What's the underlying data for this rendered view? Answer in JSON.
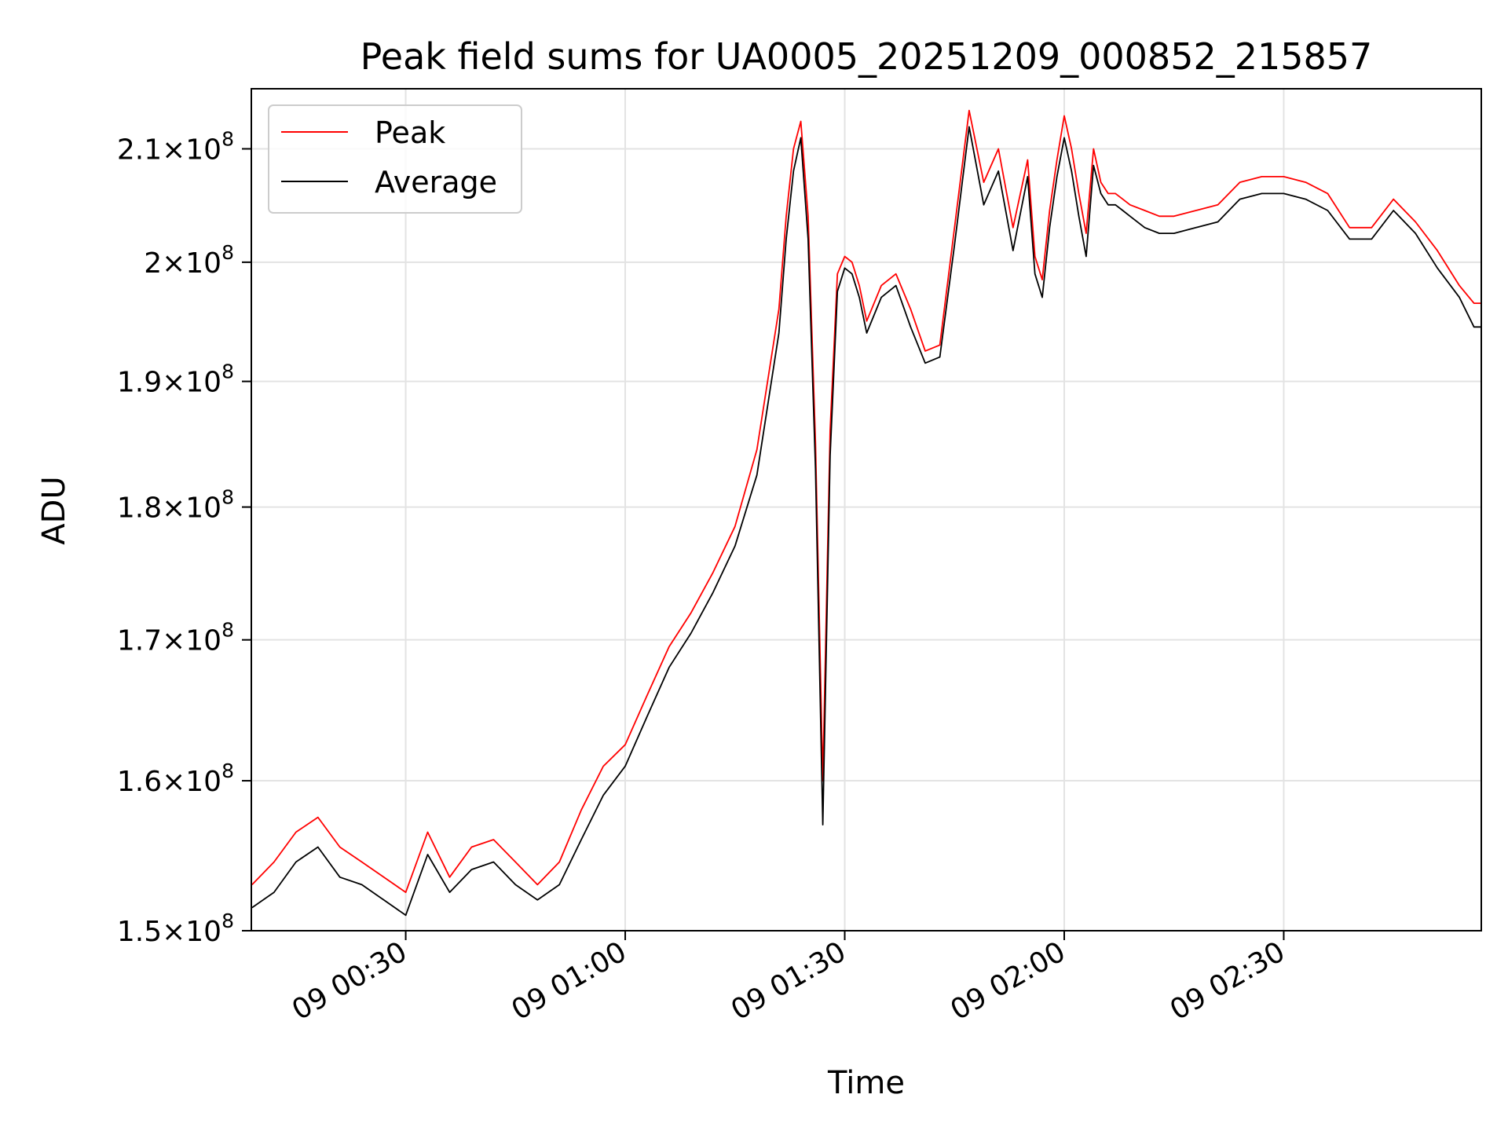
{
  "chart_data": {
    "type": "line",
    "title": "Peak field sums for UA0005_20251209_000852_215857",
    "xlabel": "Time",
    "ylabel": "ADU",
    "grid": true,
    "legend_position": "upper-left",
    "x_unit": "minutes after 09 00:00",
    "x_range": [
      8.9,
      177.0
    ],
    "y_scale": "log",
    "y_range": [
      150000000,
      215500000
    ],
    "x_ticks": [
      {
        "value": 30,
        "label": "09 00:30"
      },
      {
        "value": 60,
        "label": "09 01:00"
      },
      {
        "value": 90,
        "label": "09 01:30"
      },
      {
        "value": 120,
        "label": "09 02:00"
      },
      {
        "value": 150,
        "label": "09 02:30"
      }
    ],
    "y_ticks": [
      {
        "value": 150000000,
        "mantissa": "1.5",
        "exponent": "8"
      },
      {
        "value": 160000000,
        "mantissa": "1.6",
        "exponent": "8"
      },
      {
        "value": 170000000,
        "mantissa": "1.7",
        "exponent": "8"
      },
      {
        "value": 180000000,
        "mantissa": "1.8",
        "exponent": "8"
      },
      {
        "value": 190000000,
        "mantissa": "1.9",
        "exponent": "8"
      },
      {
        "value": 200000000,
        "mantissa": "2",
        "exponent": "8"
      },
      {
        "value": 210000000,
        "mantissa": "2.1",
        "exponent": "8"
      }
    ],
    "x": [
      9,
      12,
      15,
      18,
      21,
      24,
      27,
      30,
      33,
      36,
      39,
      42,
      45,
      48,
      51,
      54,
      57,
      60,
      63,
      66,
      69,
      72,
      75,
      78,
      81,
      82,
      83,
      84,
      85,
      86,
      87,
      88,
      89,
      90,
      91,
      92,
      93,
      95,
      97,
      99,
      101,
      103,
      105,
      107,
      109,
      111,
      113,
      115,
      116,
      117,
      118,
      119,
      120,
      121,
      122,
      123,
      124,
      125,
      126,
      127,
      128,
      129,
      131,
      133,
      135,
      138,
      141,
      144,
      147,
      150,
      153,
      156,
      159,
      162,
      165,
      168,
      171,
      174,
      176,
      177
    ],
    "series": [
      {
        "name": "Peak",
        "color": "#ff0000",
        "values": [
          153000000,
          154500000,
          156500000,
          157500000,
          155500000,
          154500000,
          153500000,
          152500000,
          156500000,
          153500000,
          155500000,
          156000000,
          154500000,
          153000000,
          154500000,
          158000000,
          161000000,
          162500000,
          166000000,
          169500000,
          172000000,
          175000000,
          178500000,
          184500000,
          196000000,
          204000000,
          210000000,
          212500000,
          204000000,
          185000000,
          160000000,
          186000000,
          199000000,
          200500000,
          200000000,
          198000000,
          195000000,
          198000000,
          199000000,
          196000000,
          192500000,
          193000000,
          203000000,
          213500000,
          207000000,
          210000000,
          203000000,
          209000000,
          200500000,
          198500000,
          204500000,
          209000000,
          213000000,
          210000000,
          206000000,
          202500000,
          210000000,
          207000000,
          206000000,
          206000000,
          205500000,
          205000000,
          204500000,
          204000000,
          204000000,
          204500000,
          205000000,
          207000000,
          207500000,
          207500000,
          207000000,
          206000000,
          203000000,
          203000000,
          205500000,
          203500000,
          201000000,
          198000000,
          196500000,
          196500000
        ]
      },
      {
        "name": "Average",
        "color": "#000000",
        "values": [
          151500000,
          152500000,
          154500000,
          155500000,
          153500000,
          153000000,
          152000000,
          151000000,
          155000000,
          152500000,
          154000000,
          154500000,
          153000000,
          152000000,
          153000000,
          156000000,
          159000000,
          161000000,
          164500000,
          168000000,
          170500000,
          173500000,
          177000000,
          182500000,
          194000000,
          202000000,
          208000000,
          211000000,
          202000000,
          183000000,
          157000000,
          184000000,
          197500000,
          199500000,
          199000000,
          197000000,
          194000000,
          197000000,
          198000000,
          194500000,
          191500000,
          192000000,
          201500000,
          212000000,
          205000000,
          208000000,
          201000000,
          207500000,
          199000000,
          197000000,
          203000000,
          207500000,
          211000000,
          208000000,
          204000000,
          200500000,
          208500000,
          206000000,
          205000000,
          205000000,
          204500000,
          204000000,
          203000000,
          202500000,
          202500000,
          203000000,
          203500000,
          205500000,
          206000000,
          206000000,
          205500000,
          204500000,
          202000000,
          202000000,
          204500000,
          202500000,
          199500000,
          197000000,
          194500000,
          194500000
        ]
      }
    ]
  }
}
